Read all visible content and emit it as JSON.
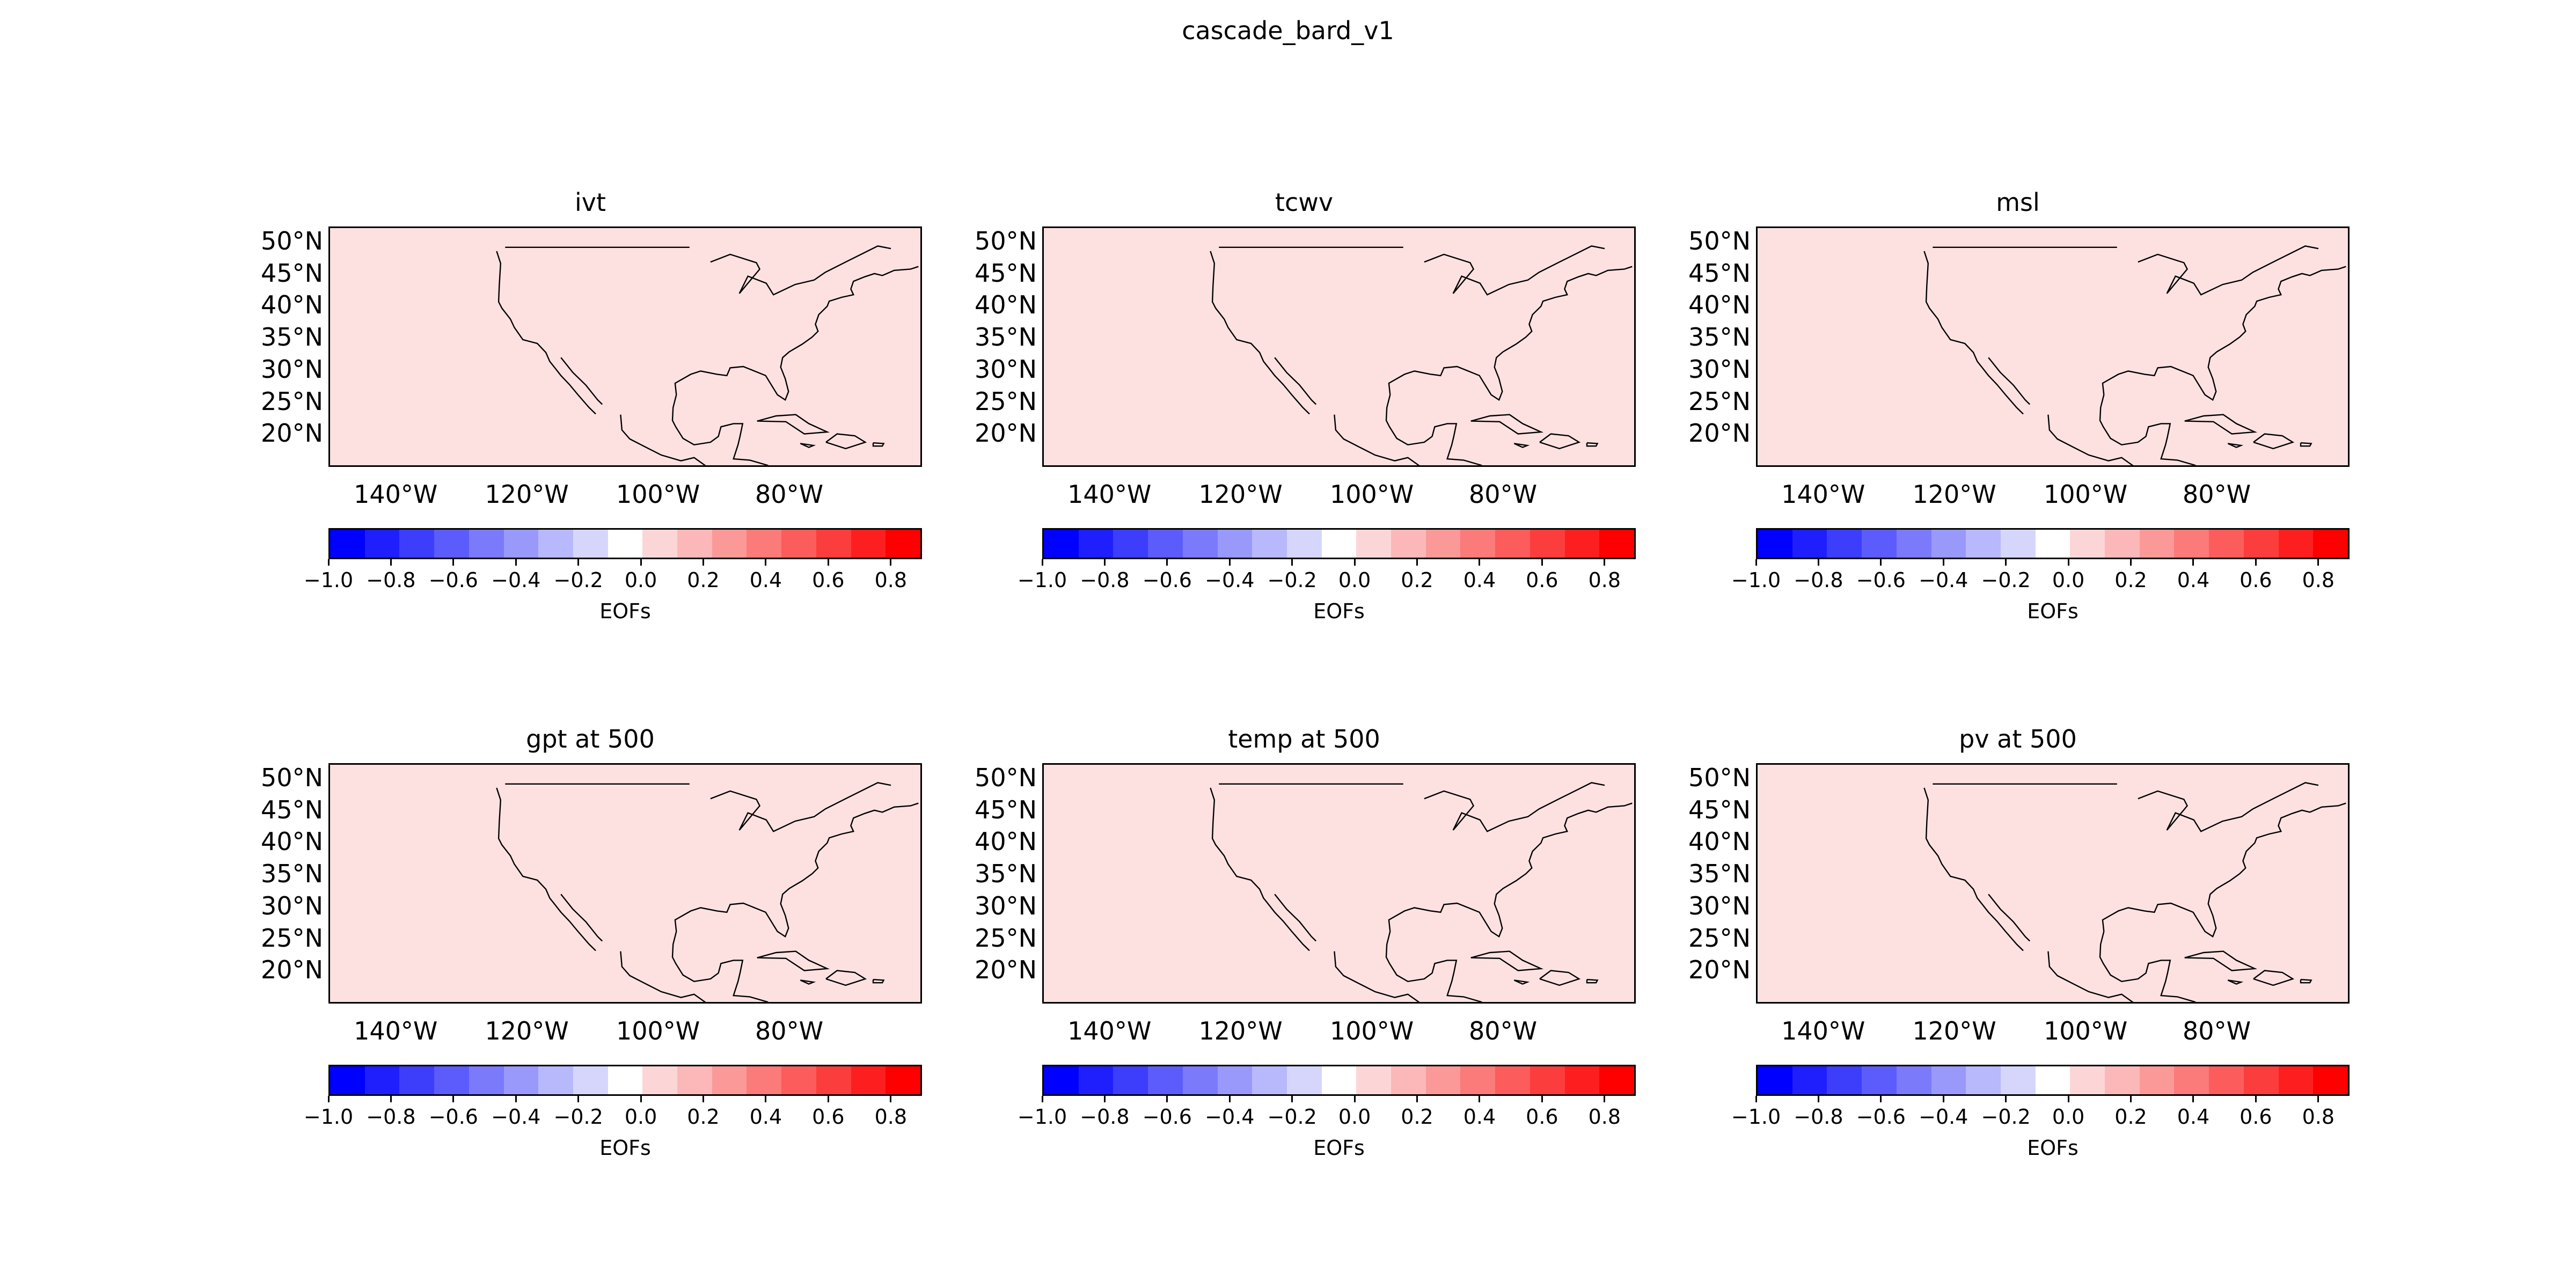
{
  "figure": {
    "title": "cascade_bard_v1",
    "fill_color": "#fde1e1",
    "coast_color": "#000000",
    "lat_labels": [
      "50°N",
      "45°N",
      "40°N",
      "35°N",
      "30°N",
      "25°N",
      "20°N"
    ],
    "lon_labels": [
      "140°W",
      "120°W",
      "100°W",
      "80°W"
    ],
    "colorbar": {
      "label": "EOFs",
      "tick_labels": [
        "−1.0",
        "−0.8",
        "−0.6",
        "−0.4",
        "−0.2",
        "0.0",
        "0.2",
        "0.4",
        "0.6",
        "0.8"
      ],
      "colors": [
        "#0000ff",
        "#1f1ffd",
        "#3d3dfc",
        "#5c5cfc",
        "#7a7afb",
        "#9999fb",
        "#b8b8fc",
        "#d6d6fc",
        "#ffffff",
        "#fcd6d6",
        "#fcb8b8",
        "#fb9999",
        "#fb7a7a",
        "#fc5c5c",
        "#fc3d3d",
        "#fd1f1f",
        "#ff0000"
      ]
    }
  },
  "panels": [
    {
      "title": "ivt"
    },
    {
      "title": "tcwv"
    },
    {
      "title": "msl"
    },
    {
      "title": "gpt at 500"
    },
    {
      "title": "temp at 500"
    },
    {
      "title": "pv at 500"
    }
  ],
  "chart_data": {
    "type": "heatmap",
    "title": "cascade_bard_v1",
    "extent": {
      "lon": [
        -150,
        -60
      ],
      "lat": [
        15,
        52
      ]
    },
    "variables": [
      "ivt",
      "tcwv",
      "msl",
      "gpt at 500",
      "temp at 500",
      "pv at 500"
    ],
    "field_value": 0.05,
    "colorbar_range": [
      -1.0,
      0.9
    ],
    "colorbar_levels": 17,
    "colorbar_label": "EOFs"
  }
}
